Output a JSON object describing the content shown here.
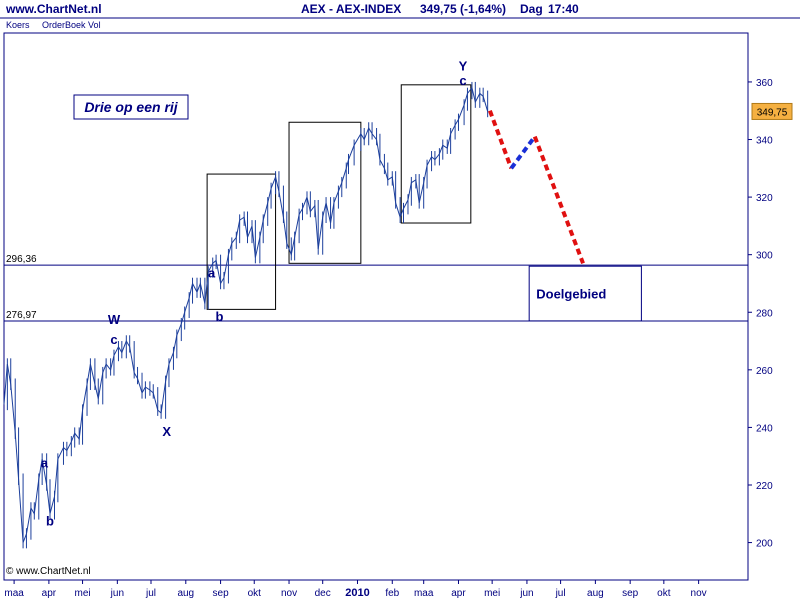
{
  "header": {
    "site": "www.ChartNet.nl",
    "index": "AEX - AEX-INDEX",
    "quote": "349,75 (-1,64%)",
    "period": "Dag",
    "time": "17:40"
  },
  "tabs": [
    "Koers",
    "OrderBoek Vol"
  ],
  "watermark": "© www.ChartNet.nl",
  "annotation_title": "Drie op een rij",
  "target_zone_label": "Doelgebied",
  "last_price_badge": "349,75",
  "colors": {
    "line": "#000080",
    "price": "#1c3f9c",
    "frame": "#000080",
    "red_dash": "#e01010",
    "blue_dash": "#1a2fd6",
    "badge_bg": "#f5b041"
  },
  "chart_data": {
    "type": "line",
    "title": "AEX - AEX-INDEX",
    "ylim": [
      187,
      377
    ],
    "y_ticks": [
      200,
      220,
      240,
      260,
      280,
      300,
      320,
      340,
      360
    ],
    "x_ticks": [
      "maa",
      "apr",
      "mei",
      "jun",
      "jul",
      "aug",
      "sep",
      "okt",
      "nov",
      "dec",
      "2010",
      "feb",
      "maa",
      "apr",
      "mei",
      "jun",
      "jul",
      "aug",
      "sep",
      "okt",
      "nov"
    ],
    "x_domain": [
      "2009-02-20",
      "2010-12-15"
    ],
    "x_tick_dates": [
      "2009-03-01",
      "2009-04-01",
      "2009-05-01",
      "2009-06-01",
      "2009-07-01",
      "2009-08-01",
      "2009-09-01",
      "2009-10-01",
      "2009-11-01",
      "2009-12-01",
      "2010-01-01",
      "2010-02-01",
      "2010-03-01",
      "2010-04-01",
      "2010-05-01",
      "2010-06-01",
      "2010-07-01",
      "2010-08-01",
      "2010-09-01",
      "2010-10-01",
      "2010-11-01"
    ],
    "horizontal_lines": [
      {
        "label": "296,36",
        "value": 296.36
      },
      {
        "label": "276,97",
        "value": 276.97
      }
    ],
    "series": [
      {
        "points": [
          [
            "2009-02-20",
            248
          ],
          [
            "2009-02-23",
            262
          ],
          [
            "2009-02-26",
            255
          ],
          [
            "2009-03-02",
            238
          ],
          [
            "2009-03-05",
            222
          ],
          [
            "2009-03-09",
            200
          ],
          [
            "2009-03-12",
            203
          ],
          [
            "2009-03-16",
            212
          ],
          [
            "2009-03-19",
            210
          ],
          [
            "2009-03-23",
            222
          ],
          [
            "2009-03-26",
            229
          ],
          [
            "2009-03-30",
            220
          ],
          [
            "2009-04-02",
            210
          ],
          [
            "2009-04-06",
            216
          ],
          [
            "2009-04-09",
            229
          ],
          [
            "2009-04-14",
            233
          ],
          [
            "2009-04-17",
            232
          ],
          [
            "2009-04-21",
            235
          ],
          [
            "2009-04-24",
            238
          ],
          [
            "2009-04-28",
            236
          ],
          [
            "2009-05-01",
            246
          ],
          [
            "2009-05-05",
            255
          ],
          [
            "2009-05-08",
            262
          ],
          [
            "2009-05-12",
            255
          ],
          [
            "2009-05-15",
            250
          ],
          [
            "2009-05-19",
            259
          ],
          [
            "2009-05-22",
            262
          ],
          [
            "2009-05-26",
            260
          ],
          [
            "2009-05-29",
            265
          ],
          [
            "2009-06-02",
            268
          ],
          [
            "2009-06-05",
            266
          ],
          [
            "2009-06-09",
            270
          ],
          [
            "2009-06-12",
            268
          ],
          [
            "2009-06-16",
            259
          ],
          [
            "2009-06-19",
            257
          ],
          [
            "2009-06-23",
            252
          ],
          [
            "2009-06-26",
            254
          ],
          [
            "2009-06-30",
            253
          ],
          [
            "2009-07-03",
            252
          ],
          [
            "2009-07-07",
            246
          ],
          [
            "2009-07-10",
            245
          ],
          [
            "2009-07-14",
            256
          ],
          [
            "2009-07-17",
            262
          ],
          [
            "2009-07-21",
            266
          ],
          [
            "2009-07-24",
            272
          ],
          [
            "2009-07-28",
            276
          ],
          [
            "2009-07-31",
            280
          ],
          [
            "2009-08-04",
            285
          ],
          [
            "2009-08-07",
            290
          ],
          [
            "2009-08-11",
            287
          ],
          [
            "2009-08-14",
            290
          ],
          [
            "2009-08-18",
            283
          ],
          [
            "2009-08-21",
            294
          ],
          [
            "2009-08-25",
            297
          ],
          [
            "2009-08-28",
            298
          ],
          [
            "2009-09-01",
            290
          ],
          [
            "2009-09-04",
            292
          ],
          [
            "2009-09-08",
            300
          ],
          [
            "2009-09-11",
            304
          ],
          [
            "2009-09-15",
            306
          ],
          [
            "2009-09-18",
            312
          ],
          [
            "2009-09-22",
            313
          ],
          [
            "2009-09-25",
            306
          ],
          [
            "2009-09-29",
            310
          ],
          [
            "2009-10-02",
            299
          ],
          [
            "2009-10-06",
            306
          ],
          [
            "2009-10-09",
            312
          ],
          [
            "2009-10-13",
            318
          ],
          [
            "2009-10-16",
            323
          ],
          [
            "2009-10-20",
            327
          ],
          [
            "2009-10-23",
            322
          ],
          [
            "2009-10-27",
            313
          ],
          [
            "2009-10-30",
            304
          ],
          [
            "2009-11-03",
            300
          ],
          [
            "2009-11-06",
            306
          ],
          [
            "2009-11-10",
            314
          ],
          [
            "2009-11-13",
            316
          ],
          [
            "2009-11-17",
            320
          ],
          [
            "2009-11-20",
            315
          ],
          [
            "2009-11-24",
            317
          ],
          [
            "2009-11-27",
            302
          ],
          [
            "2009-12-01",
            313
          ],
          [
            "2009-12-04",
            318
          ],
          [
            "2009-12-08",
            311
          ],
          [
            "2009-12-11",
            318
          ],
          [
            "2009-12-15",
            322
          ],
          [
            "2009-12-18",
            325
          ],
          [
            "2009-12-22",
            330
          ],
          [
            "2009-12-24",
            333
          ],
          [
            "2009-12-29",
            338
          ],
          [
            "2010-01-04",
            342
          ],
          [
            "2010-01-07",
            340
          ],
          [
            "2010-01-11",
            344
          ],
          [
            "2010-01-14",
            342
          ],
          [
            "2010-01-18",
            340
          ],
          [
            "2010-01-21",
            333
          ],
          [
            "2010-01-25",
            330
          ],
          [
            "2010-01-28",
            326
          ],
          [
            "2010-02-01",
            327
          ],
          [
            "2010-02-04",
            318
          ],
          [
            "2010-02-08",
            313
          ],
          [
            "2010-02-11",
            316
          ],
          [
            "2010-02-15",
            319
          ],
          [
            "2010-02-18",
            325
          ],
          [
            "2010-02-22",
            326
          ],
          [
            "2010-02-25",
            318
          ],
          [
            "2010-03-01",
            325
          ],
          [
            "2010-03-04",
            331
          ],
          [
            "2010-03-08",
            334
          ],
          [
            "2010-03-11",
            333
          ],
          [
            "2010-03-15",
            335
          ],
          [
            "2010-03-18",
            338
          ],
          [
            "2010-03-22",
            337
          ],
          [
            "2010-03-25",
            342
          ],
          [
            "2010-03-29",
            345
          ],
          [
            "2010-04-01",
            347
          ],
          [
            "2010-04-06",
            352
          ],
          [
            "2010-04-09",
            356
          ],
          [
            "2010-04-13",
            358
          ],
          [
            "2010-04-16",
            353
          ],
          [
            "2010-04-20",
            356
          ],
          [
            "2010-04-23",
            355
          ],
          [
            "2010-04-27",
            349.75
          ]
        ]
      }
    ],
    "projection_red": [
      [
        "2010-04-29",
        350
      ],
      [
        "2010-05-18",
        330
      ]
    ],
    "projection_blue": [
      [
        "2010-05-18",
        330
      ],
      [
        "2010-06-08",
        341
      ]
    ],
    "projection_red2": [
      [
        "2010-06-08",
        341
      ],
      [
        "2010-07-21",
        297
      ]
    ],
    "boxes": [
      {
        "x": [
          "2009-08-20",
          "2009-10-20"
        ],
        "y": [
          281,
          328
        ]
      },
      {
        "x": [
          "2009-11-01",
          "2010-01-04"
        ],
        "y": [
          297,
          346
        ]
      },
      {
        "x": [
          "2010-02-09",
          "2010-04-12"
        ],
        "y": [
          311,
          359
        ]
      },
      {
        "x": [
          "2010-06-03",
          "2010-09-11"
        ],
        "y": [
          277,
          296
        ]
      }
    ],
    "wave_labels": [
      {
        "text": "a",
        "x": "2009-03-28",
        "y": 226
      },
      {
        "text": "b",
        "x": "2009-04-02",
        "y": 206
      },
      {
        "text": "W",
        "x": "2009-05-29",
        "y": 276
      },
      {
        "text": "c",
        "x": "2009-05-29",
        "y": 269
      },
      {
        "text": "X",
        "x": "2009-07-15",
        "y": 237
      },
      {
        "text": "a",
        "x": "2009-08-24",
        "y": 292
      },
      {
        "text": "b",
        "x": "2009-08-31",
        "y": 277
      },
      {
        "text": "Y",
        "x": "2010-04-05",
        "y": 364
      },
      {
        "text": "c",
        "x": "2010-04-05",
        "y": 359
      }
    ]
  }
}
